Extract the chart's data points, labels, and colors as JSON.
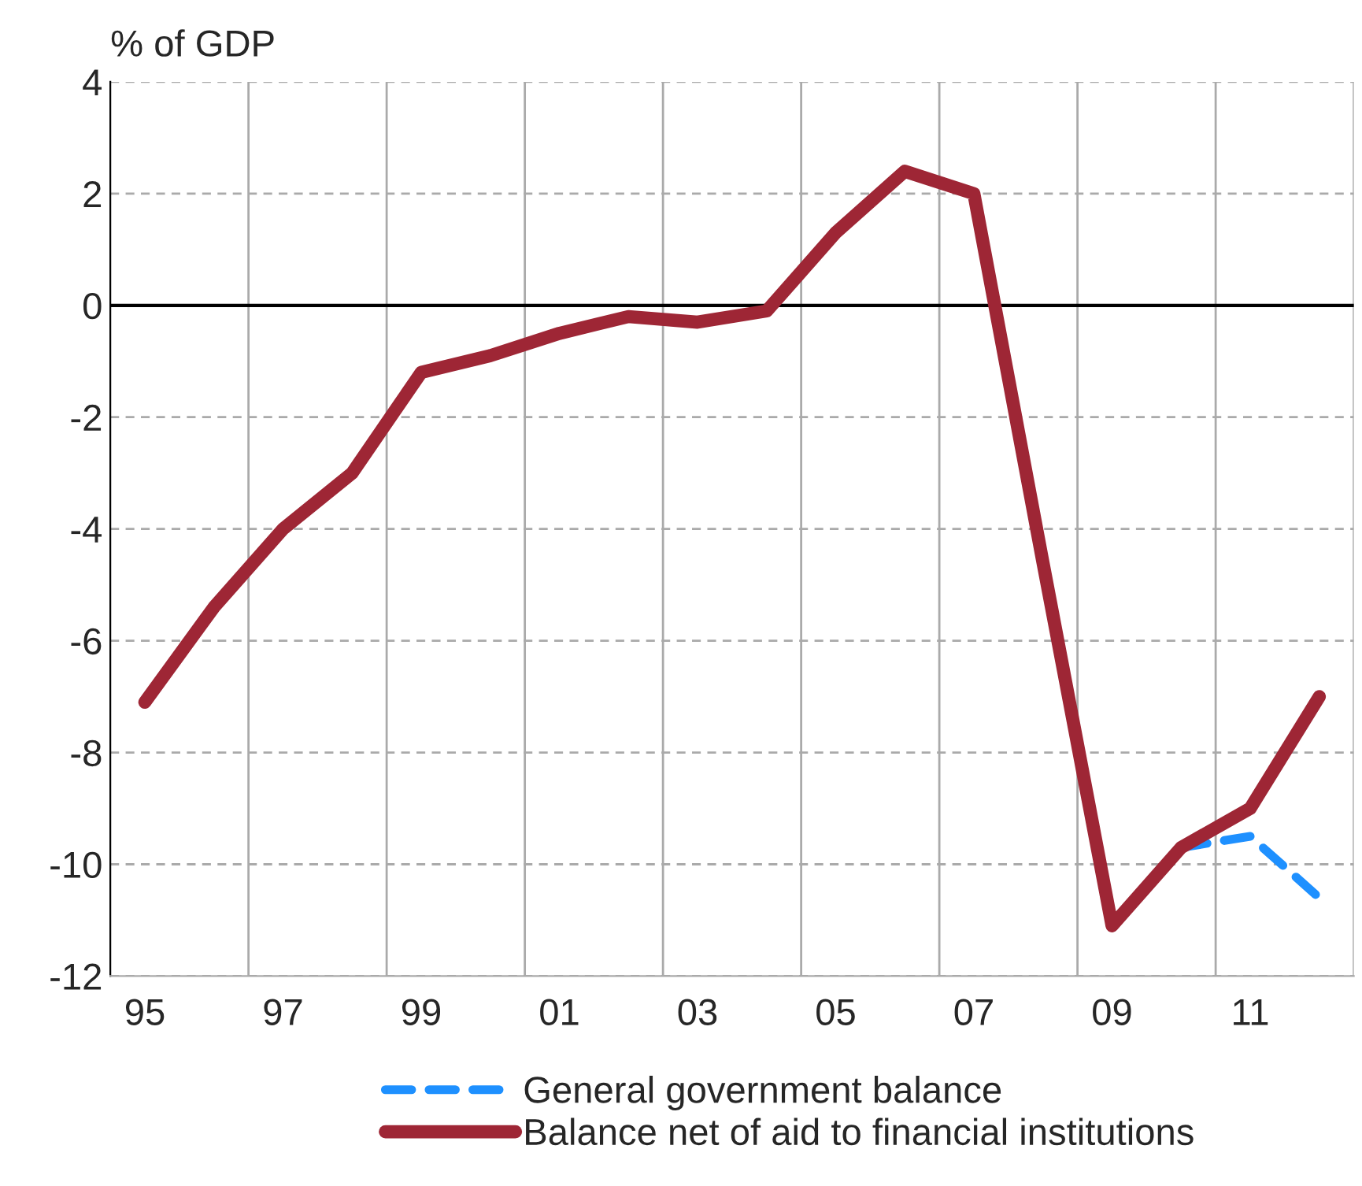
{
  "chart_data": {
    "type": "line",
    "ylabel": "% of GDP",
    "categories": [
      "95",
      null,
      "97",
      null,
      "99",
      null,
      "01",
      null,
      "03",
      null,
      "05",
      null,
      "07",
      null,
      "09",
      null,
      "11",
      null
    ],
    "series": [
      {
        "name": "General government balance",
        "color": "#1e90ff",
        "line_style": "dashed",
        "values": [
          null,
          null,
          null,
          null,
          null,
          null,
          null,
          null,
          null,
          null,
          null,
          null,
          null,
          null,
          null,
          -9.7,
          -9.5,
          -10.6
        ]
      },
      {
        "name": "Balance net of aid to financial institutions",
        "color": "#9e2635",
        "line_style": "solid",
        "values": [
          -7.1,
          -5.4,
          -4.0,
          -3.0,
          -1.2,
          -0.9,
          -0.5,
          -0.2,
          -0.3,
          -0.1,
          1.3,
          2.4,
          2.0,
          -4.6,
          -11.1,
          -9.7,
          -9.0,
          -7.0
        ]
      }
    ],
    "ylim": [
      -12,
      4
    ],
    "yticks": [
      -12,
      -10,
      -8,
      -6,
      -4,
      -2,
      0,
      2,
      4
    ],
    "ref_lines": [
      {
        "axis": "y",
        "value": 0,
        "color": "#000000"
      }
    ],
    "grid": true,
    "legend": "bottom",
    "marker": "none"
  }
}
